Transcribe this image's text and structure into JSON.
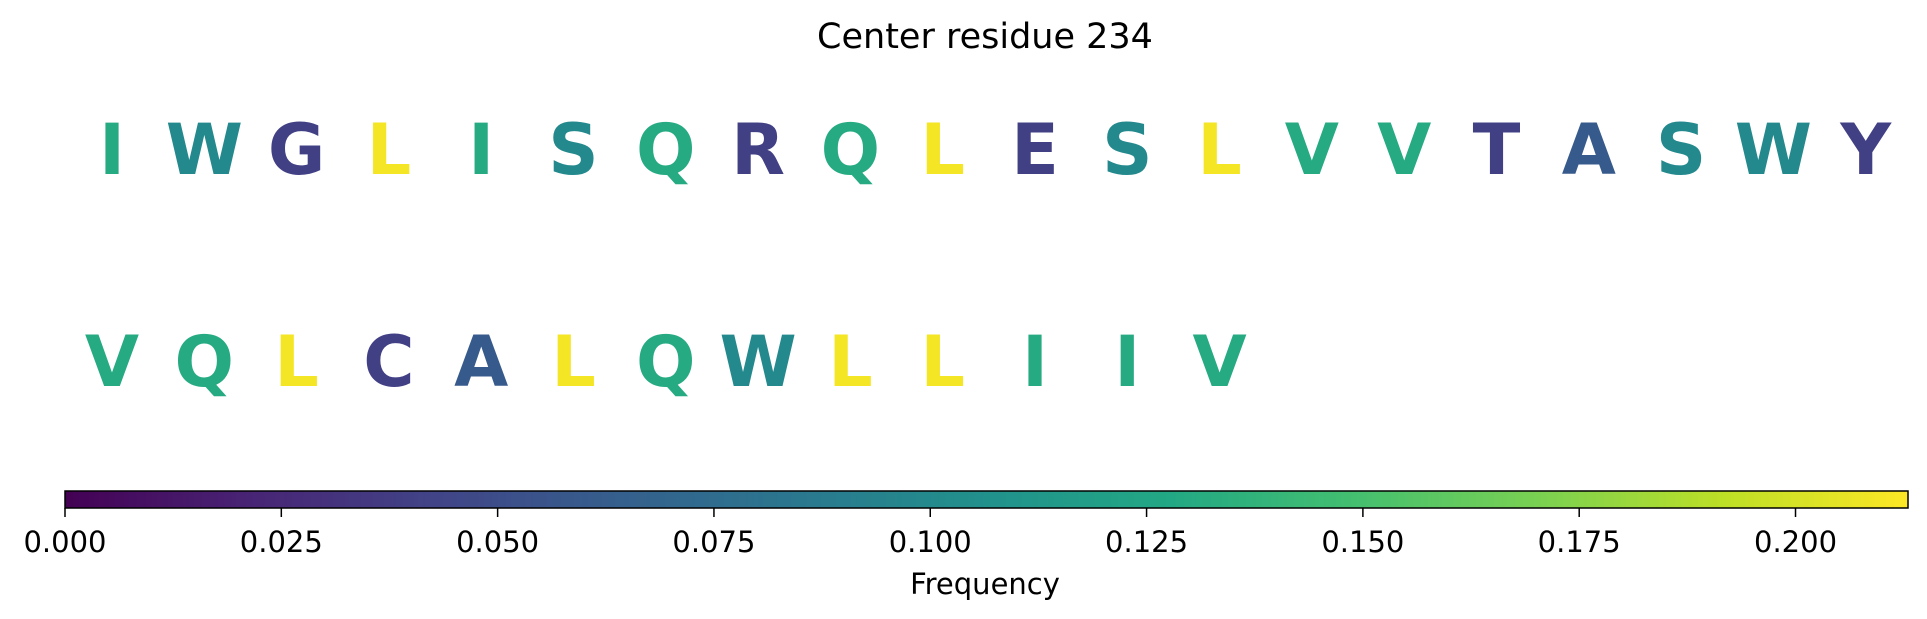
{
  "chart_data": {
    "type": "sequence-logo",
    "title": "Center residue 234",
    "rows": [
      {
        "residues": [
          {
            "letter": "I",
            "frequency": 0.13
          },
          {
            "letter": "W",
            "frequency": 0.1
          },
          {
            "letter": "G",
            "frequency": 0.04
          },
          {
            "letter": "L",
            "frequency": 0.21
          },
          {
            "letter": "I",
            "frequency": 0.13
          },
          {
            "letter": "S",
            "frequency": 0.1
          },
          {
            "letter": "Q",
            "frequency": 0.13
          },
          {
            "letter": "R",
            "frequency": 0.04
          },
          {
            "letter": "Q",
            "frequency": 0.13
          },
          {
            "letter": "L",
            "frequency": 0.21
          },
          {
            "letter": "E",
            "frequency": 0.04
          },
          {
            "letter": "S",
            "frequency": 0.1
          },
          {
            "letter": "L",
            "frequency": 0.21
          },
          {
            "letter": "V",
            "frequency": 0.13
          },
          {
            "letter": "V",
            "frequency": 0.13
          },
          {
            "letter": "T",
            "frequency": 0.04
          },
          {
            "letter": "A",
            "frequency": 0.06
          },
          {
            "letter": "S",
            "frequency": 0.1
          },
          {
            "letter": "W",
            "frequency": 0.1
          },
          {
            "letter": "Y",
            "frequency": 0.04
          }
        ]
      },
      {
        "residues": [
          {
            "letter": "V",
            "frequency": 0.13
          },
          {
            "letter": "Q",
            "frequency": 0.13
          },
          {
            "letter": "L",
            "frequency": 0.21
          },
          {
            "letter": "C",
            "frequency": 0.04
          },
          {
            "letter": "A",
            "frequency": 0.06
          },
          {
            "letter": "L",
            "frequency": 0.21
          },
          {
            "letter": "Q",
            "frequency": 0.13
          },
          {
            "letter": "W",
            "frequency": 0.1
          },
          {
            "letter": "L",
            "frequency": 0.21
          },
          {
            "letter": "L",
            "frequency": 0.21
          },
          {
            "letter": "I",
            "frequency": 0.13
          },
          {
            "letter": "I",
            "frequency": 0.13
          },
          {
            "letter": "V",
            "frequency": 0.13
          }
        ]
      }
    ],
    "colorbar": {
      "label": "Frequency",
      "min": 0.0,
      "max": 0.213,
      "colormap": "viridis",
      "ticks": [
        "0.000",
        "0.025",
        "0.050",
        "0.075",
        "0.100",
        "0.125",
        "0.150",
        "0.175",
        "0.200"
      ],
      "tick_values": [
        0.0,
        0.025,
        0.05,
        0.075,
        0.1,
        0.125,
        0.15,
        0.175,
        0.2
      ]
    }
  }
}
